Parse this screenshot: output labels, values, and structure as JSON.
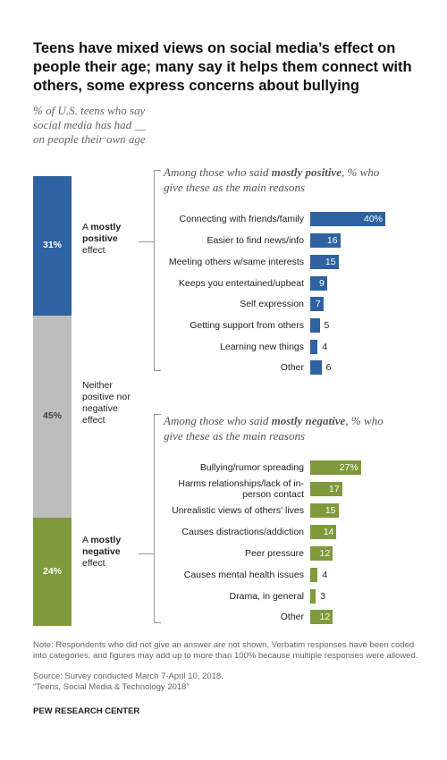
{
  "chart_data": {
    "type": "bar",
    "title": "Teens have mixed views on social media’s effect on people their age; many say it helps them connect with others, some express concerns about bullying",
    "subtitle": "% of U.S. teens who say social media has had __ on people their own age",
    "overall": {
      "type": "stacked-bar",
      "values": [
        31,
        45,
        24
      ],
      "value_labels": [
        "31%",
        "45%",
        "24%"
      ],
      "labels": [
        [
          "A ",
          "mostly positive",
          " effect"
        ],
        [
          "Neither positive nor negative effect"
        ],
        [
          "A ",
          "mostly negative",
          " effect"
        ]
      ],
      "colors": [
        "#2e62a0",
        "#bdbdbd",
        "#7f9a3a"
      ],
      "label_colors": [
        "#ffffff",
        "#444444",
        "#ffffff"
      ]
    },
    "panels": [
      {
        "heading": [
          "Among those who said ",
          "mostly positive",
          ", % who give these as the main reasons"
        ],
        "color": "#2e62a0",
        "categories": [
          "Connecting with friends/family",
          "Easier to find news/info",
          "Meeting others w/same interests",
          "Keeps you entertained/upbeat",
          "Self expression",
          "Getting support from others",
          "Learning new things",
          "Other"
        ],
        "values": [
          40,
          16,
          15,
          9,
          7,
          5,
          4,
          6
        ],
        "value_labels": [
          "40%",
          "16",
          "15",
          "9",
          "7",
          "5",
          "4",
          "6"
        ]
      },
      {
        "heading": [
          "Among those who said ",
          "mostly negative",
          ", % who give these as the main reasons"
        ],
        "color": "#7f9a3a",
        "categories": [
          "Bullying/rumor spreading",
          "Harms relationships/lack of in-person contact",
          "Unrealistic views of others' lives",
          "Causes distractions/addiction",
          "Peer pressure",
          "Causes mental health issues",
          "Drama, in general",
          "Other"
        ],
        "values": [
          27,
          17,
          15,
          14,
          12,
          4,
          3,
          12
        ],
        "value_labels": [
          "27%",
          "17",
          "15",
          "14",
          "12",
          "4",
          "3",
          "12"
        ]
      }
    ],
    "note": "Note: Respondents who did not give an answer are not shown. Verbatim responses have been coded into categories, and figures may add up to more than 100% because multiple responses were allowed.",
    "source": "Source: Survey conducted March 7-April 10, 2018.",
    "report": "“Teens, Social Media & Technology 2018”",
    "credit": "PEW RESEARCH CENTER"
  }
}
